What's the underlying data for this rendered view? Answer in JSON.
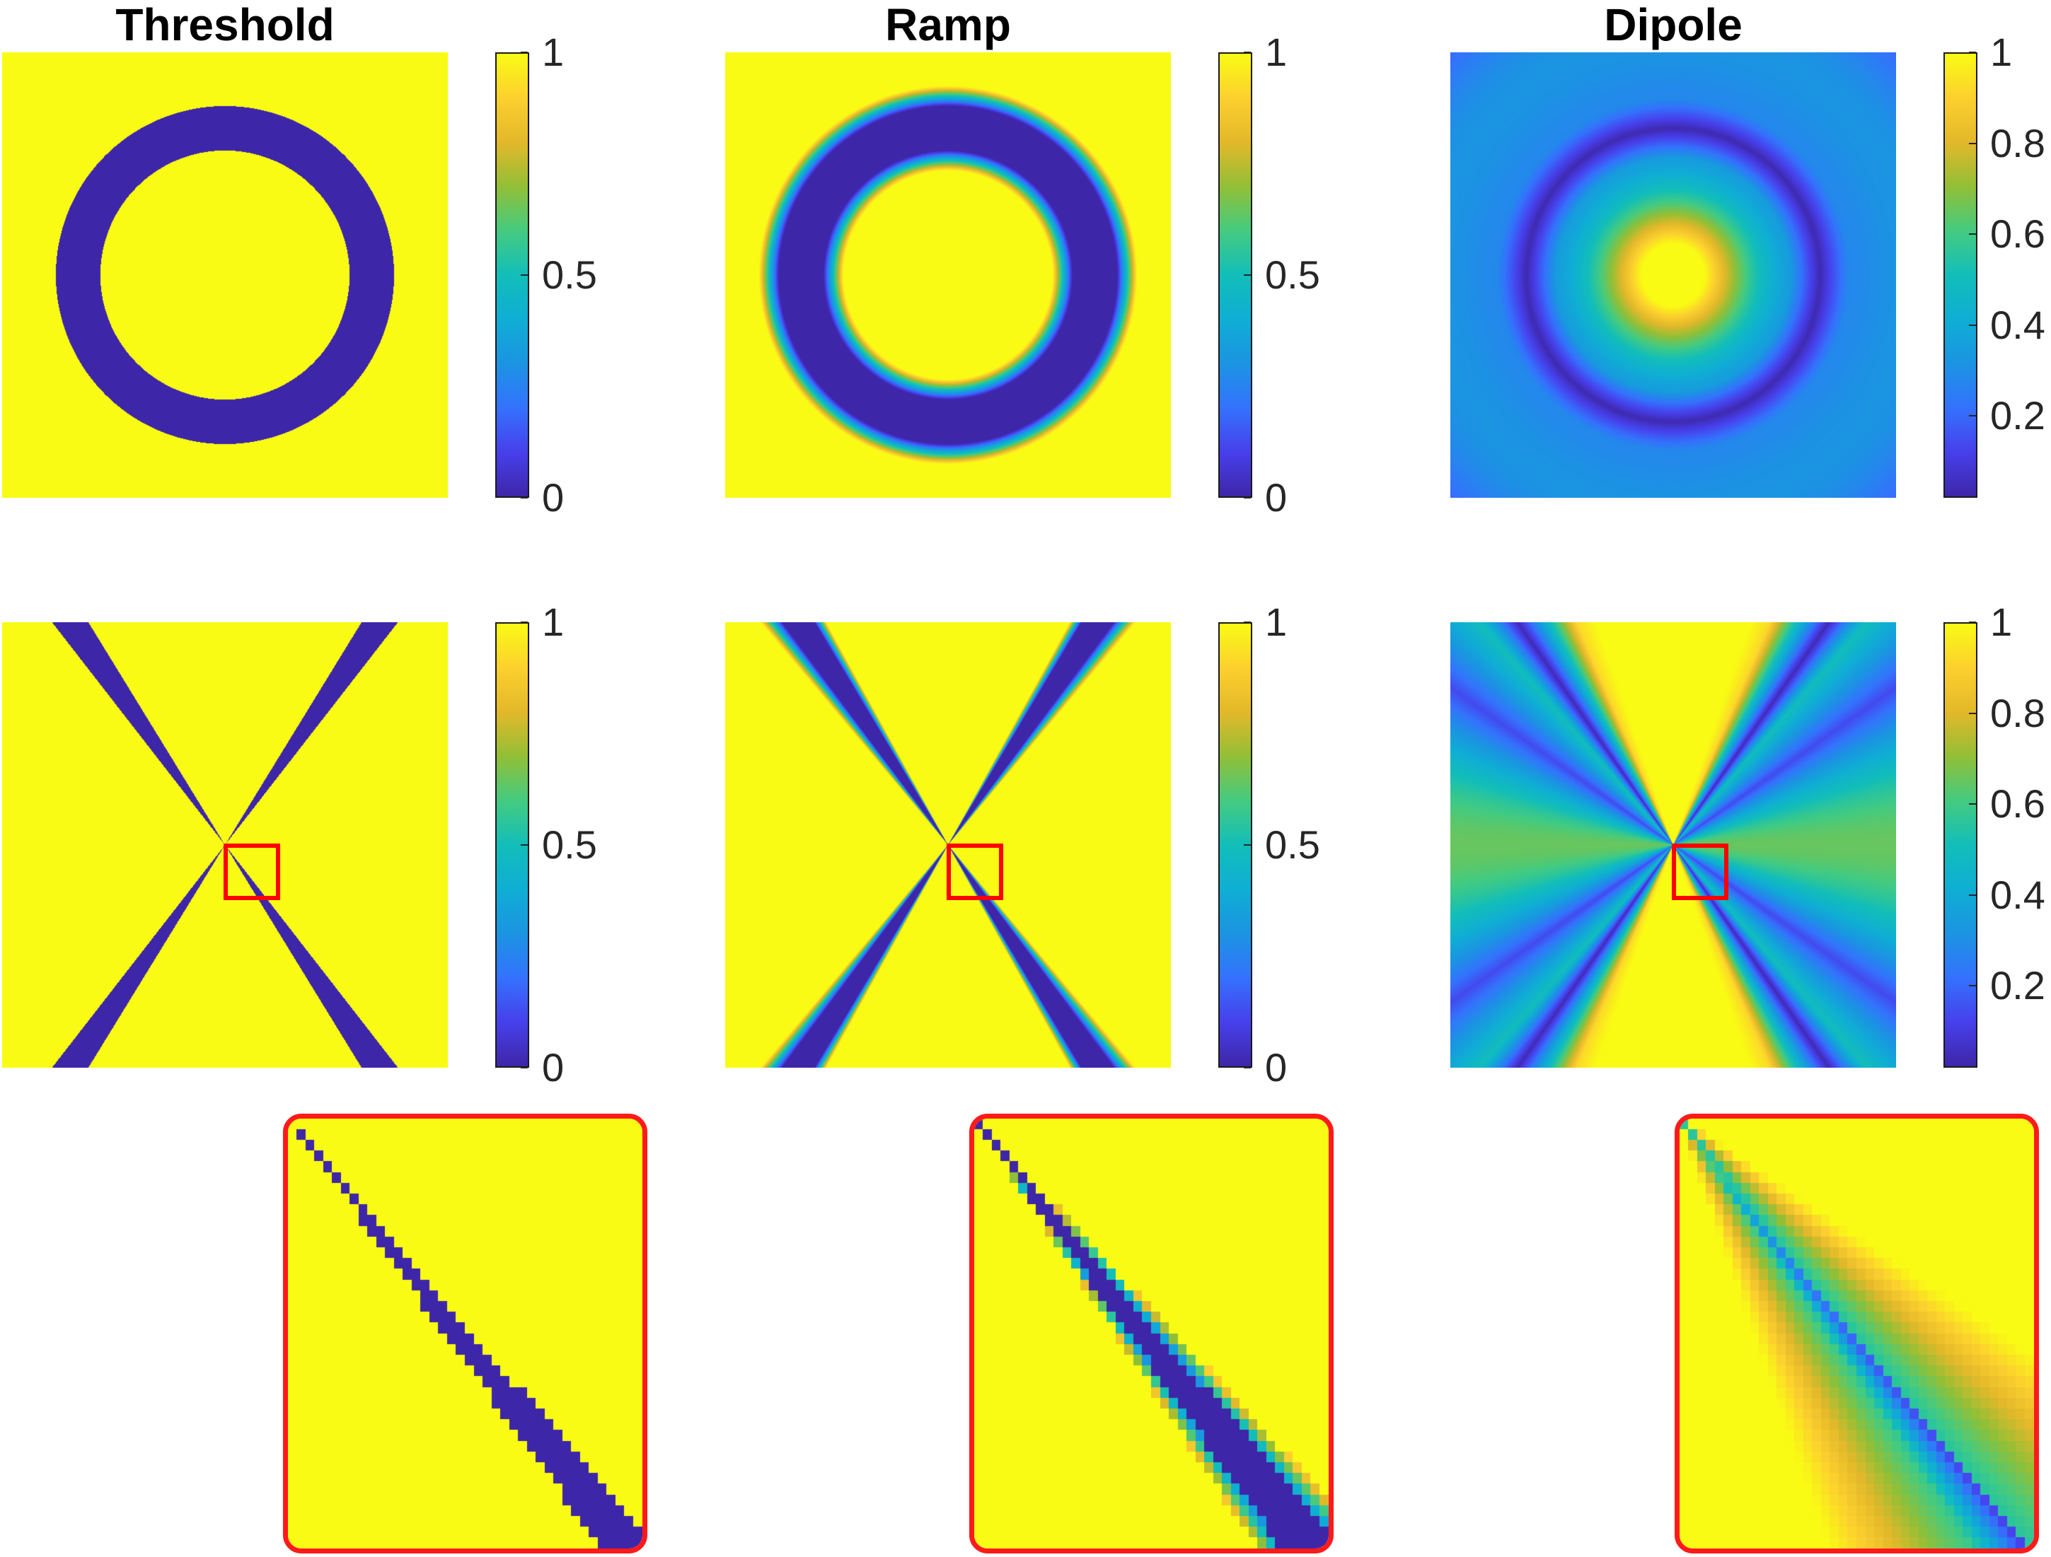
{
  "colors": {
    "zoom_outline": "#ff0000",
    "colormap": "parula"
  },
  "figure": {
    "columns": [
      {
        "title": "Threshold"
      },
      {
        "title": "Ramp"
      },
      {
        "title": "Dipole"
      }
    ]
  },
  "chart_data": [
    {
      "type": "heatmap",
      "panel": "threshold-ring",
      "title": "Threshold",
      "pattern": "ring",
      "profile": "threshold",
      "colorbar": {
        "ticks": [
          "0",
          "0.5",
          "1"
        ],
        "range": [
          0,
          1
        ]
      }
    },
    {
      "type": "heatmap",
      "panel": "ramp-ring",
      "title": "Ramp",
      "pattern": "ring",
      "profile": "ramp",
      "colorbar": {
        "ticks": [
          "0",
          "0.5",
          "1"
        ],
        "range": [
          0,
          1
        ]
      }
    },
    {
      "type": "heatmap",
      "panel": "dipole-ring",
      "title": "Dipole",
      "pattern": "ring",
      "profile": "dipole",
      "colorbar": {
        "ticks": [
          "0.2",
          "0.4",
          "0.6",
          "0.8",
          "1"
        ],
        "range": [
          0.02,
          1
        ]
      }
    },
    {
      "type": "heatmap",
      "panel": "threshold-cone",
      "pattern": "double-cone",
      "profile": "threshold",
      "colorbar": {
        "ticks": [
          "0",
          "0.5",
          "1"
        ],
        "range": [
          0,
          1
        ]
      }
    },
    {
      "type": "heatmap",
      "panel": "ramp-cone",
      "pattern": "double-cone",
      "profile": "ramp",
      "colorbar": {
        "ticks": [
          "0",
          "0.5",
          "1"
        ],
        "range": [
          0,
          1
        ]
      }
    },
    {
      "type": "heatmap",
      "panel": "dipole-cone",
      "pattern": "double-cone",
      "profile": "dipole",
      "colorbar": {
        "ticks": [
          "0.2",
          "0.4",
          "0.6",
          "0.8",
          "1"
        ],
        "range": [
          0.02,
          1
        ]
      }
    },
    {
      "type": "heatmap",
      "panel": "threshold-zoom",
      "pattern": "double-cone-zoom",
      "profile": "threshold",
      "grid_cells": 40
    },
    {
      "type": "heatmap",
      "panel": "ramp-zoom",
      "pattern": "double-cone-zoom",
      "profile": "ramp",
      "grid_cells": 40
    },
    {
      "type": "heatmap",
      "panel": "dipole-zoom",
      "pattern": "double-cone-zoom",
      "profile": "dipole",
      "grid_cells": 40
    }
  ]
}
